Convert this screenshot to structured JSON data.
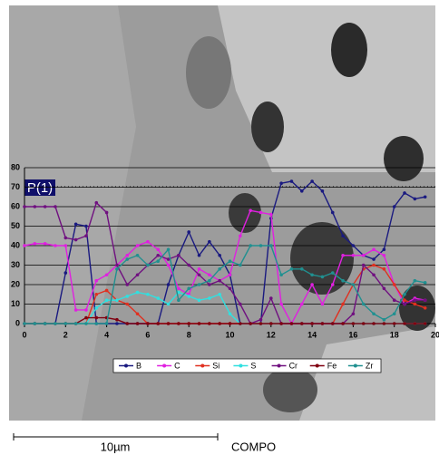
{
  "chart_data": {
    "type": "line",
    "annotation": "P(1)",
    "scale_label": "10µm",
    "mode_label": "COMPO",
    "x": [
      0,
      0.5,
      1,
      1.5,
      2,
      2.5,
      3,
      3.5,
      4,
      4.5,
      5,
      5.5,
      6,
      6.5,
      7,
      7.5,
      8,
      8.5,
      9,
      9.5,
      10,
      10.5,
      11,
      11.5,
      12,
      12.5,
      13,
      13.5,
      14,
      14.5,
      15,
      15.5,
      16,
      16.5,
      17,
      17.5,
      18,
      18.5,
      19,
      19.5
    ],
    "xlim": [
      0,
      20
    ],
    "xticks": [
      0,
      2,
      4,
      6,
      8,
      10,
      12,
      14,
      16,
      18,
      20
    ],
    "ylim": [
      0,
      80
    ],
    "yticks": [
      0,
      10,
      20,
      30,
      40,
      50,
      60,
      70,
      80
    ],
    "grid": true,
    "series": [
      {
        "name": "B",
        "color": "#1a1a80",
        "values": [
          0,
          0,
          0,
          0,
          26,
          51,
          50,
          0,
          0,
          0,
          0,
          0,
          0,
          0,
          20,
          35,
          47,
          35,
          42,
          35,
          25,
          0,
          0,
          0,
          54,
          72,
          73,
          68,
          73,
          68,
          57,
          45,
          40,
          35,
          33,
          38,
          60,
          67,
          64,
          65
        ]
      },
      {
        "name": "C",
        "color": "#e020e0",
        "values": [
          40,
          41,
          41,
          40,
          40,
          7,
          7,
          22,
          25,
          30,
          35,
          40,
          42,
          38,
          30,
          18,
          15,
          28,
          25,
          22,
          25,
          45,
          58,
          57,
          56,
          10,
          0,
          10,
          20,
          10,
          20,
          35,
          35,
          35,
          38,
          35,
          20,
          10,
          13,
          12
        ]
      },
      {
        "name": "Si",
        "color": "#e03020",
        "values": [
          0,
          0,
          0,
          0,
          0,
          0,
          0,
          15,
          17,
          12,
          10,
          5,
          0,
          0,
          0,
          0,
          0,
          0,
          0,
          0,
          0,
          0,
          0,
          0,
          0,
          0,
          0,
          0,
          0,
          0,
          0,
          10,
          20,
          28,
          30,
          28,
          20,
          12,
          10,
          8
        ]
      },
      {
        "name": "S",
        "color": "#30e0e0",
        "values": [
          0,
          0,
          0,
          0,
          0,
          0,
          0,
          8,
          12,
          12,
          14,
          16,
          15,
          13,
          10,
          16,
          14,
          12,
          13,
          15,
          5,
          0,
          0,
          0,
          0,
          0,
          0,
          0,
          0,
          0,
          0,
          0,
          0,
          0,
          0,
          0,
          0,
          0,
          0,
          0
        ]
      },
      {
        "name": "Cr",
        "color": "#701080",
        "values": [
          60,
          60,
          60,
          60,
          44,
          43,
          45,
          62,
          57,
          30,
          20,
          25,
          30,
          35,
          33,
          35,
          30,
          25,
          20,
          22,
          18,
          10,
          0,
          2,
          13,
          0,
          0,
          0,
          0,
          0,
          0,
          0,
          5,
          30,
          25,
          18,
          12,
          10,
          12,
          12
        ]
      },
      {
        "name": "Fe",
        "color": "#800010",
        "values": [
          0,
          0,
          0,
          0,
          0,
          0,
          3,
          3,
          3,
          2,
          0,
          0,
          0,
          0,
          0,
          0,
          0,
          0,
          0,
          0,
          0,
          0,
          0,
          0,
          0,
          0,
          0,
          0,
          0,
          0,
          0,
          0,
          0,
          0,
          0,
          0,
          0,
          0,
          0,
          0
        ]
      },
      {
        "name": "Zr",
        "color": "#209090",
        "values": [
          0,
          0,
          0,
          0,
          0,
          0,
          0,
          0,
          0,
          28,
          33,
          35,
          30,
          32,
          38,
          12,
          18,
          20,
          22,
          28,
          32,
          30,
          40,
          40,
          40,
          25,
          28,
          28,
          25,
          24,
          26,
          22,
          20,
          10,
          5,
          2,
          5,
          15,
          22,
          21
        ]
      }
    ]
  }
}
